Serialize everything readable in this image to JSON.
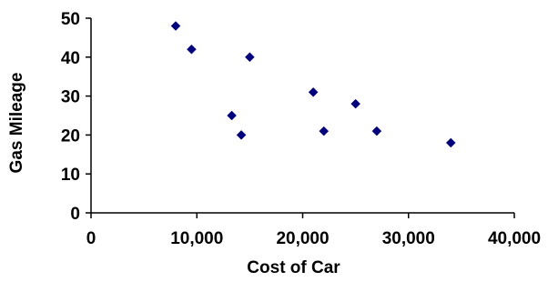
{
  "chart_data": {
    "type": "scatter",
    "title": "",
    "xlabel": "Cost of Car",
    "ylabel": "Gas Mileage",
    "xlim": [
      0,
      40000
    ],
    "ylim": [
      0,
      50
    ],
    "x_ticks": [
      0,
      10000,
      20000,
      30000,
      40000
    ],
    "x_tick_labels": [
      "0",
      "10,000",
      "20,000",
      "30,000",
      "40,000"
    ],
    "y_ticks": [
      0,
      10,
      20,
      30,
      40,
      50
    ],
    "y_tick_labels": [
      "0",
      "10",
      "20",
      "30",
      "40",
      "50"
    ],
    "grid": false,
    "legend": "none",
    "marker": "diamond",
    "marker_color": "#000080",
    "series": [
      {
        "points": [
          {
            "x": 8000,
            "y": 48
          },
          {
            "x": 9500,
            "y": 42
          },
          {
            "x": 15000,
            "y": 40
          },
          {
            "x": 13300,
            "y": 25
          },
          {
            "x": 14200,
            "y": 20
          },
          {
            "x": 21000,
            "y": 31
          },
          {
            "x": 22000,
            "y": 21
          },
          {
            "x": 25000,
            "y": 28
          },
          {
            "x": 27000,
            "y": 21
          },
          {
            "x": 34000,
            "y": 18
          }
        ]
      }
    ]
  }
}
